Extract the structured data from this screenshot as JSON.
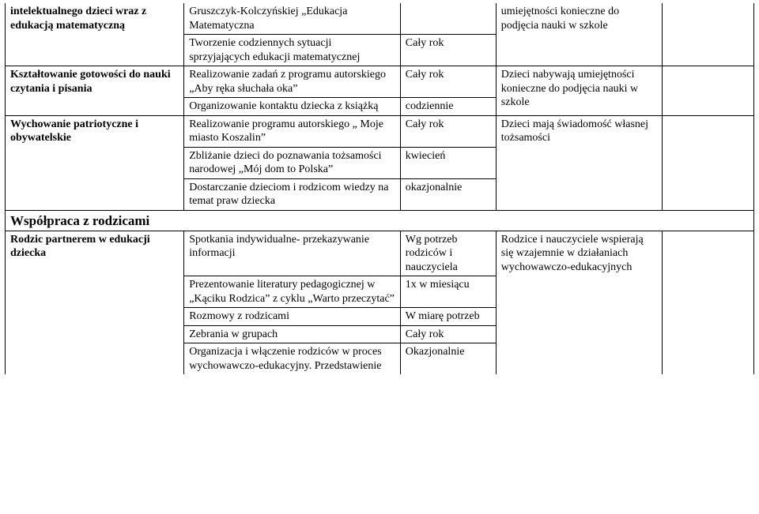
{
  "rows": {
    "r1": {
      "c1": "intelektualnego dzieci wraz z edukacją matematyczną",
      "c2a": "Gruszczyk-Kolczyńskiej „Edukacja Matematyczna",
      "c2b": "Tworzenie codziennych sytuacji sprzyjających edukacji matematycznej",
      "c3b": "Cały rok",
      "c4": "umiejętności konieczne do podjęcia nauki w szkole"
    },
    "r2": {
      "c1": "Kształtowanie gotowości do nauki czytania i pisania",
      "c2a": "Realizowanie zadań z programu autorskiego „Aby ręka słuchała oka”",
      "c3a": "Cały rok",
      "c2b": "Organizowanie kontaktu dziecka z książką",
      "c3b": "codziennie",
      "c4": "Dzieci nabywają umiejętności konieczne do podjęcia nauki w szkole"
    },
    "r3": {
      "c1": "Wychowanie patriotyczne i obywatelskie",
      "c2a": "Realizowanie programu autorskiego „ Moje miasto Koszalin”",
      "c3a": "Cały rok",
      "c2b": "Zbliżanie dzieci do poznawania tożsamości narodowej „Mój dom to Polska”",
      "c3b": "kwiecień",
      "c2c": "Dostarczanie dzieciom i rodzicom wiedzy na temat praw dziecka",
      "c3c": "okazjonalnie",
      "c4": "Dzieci mają świadomość własnej tożsamości"
    },
    "section": "Współpraca z rodzicami",
    "r4": {
      "c1": "Rodzic partnerem w edukacji dziecka",
      "c2a": "Spotkania indywidualne- przekazywanie informacji",
      "c3a": "Wg potrzeb rodziców i nauczyciela",
      "c2b": "Prezentowanie literatury pedagogicznej w „Kąciku Rodzica” z cyklu „Warto przeczytać”",
      "c3b": "1x w miesiącu",
      "c2c": "Rozmowy z rodzicami",
      "c3c": "W miarę potrzeb",
      "c2d": "Zebrania w grupach",
      "c3d": "Cały rok",
      "c2e": "Organizacja i włączenie rodziców w proces wychowawczo-edukacyjny. Przedstawienie",
      "c3e": "Okazjonalnie",
      "c4": "Rodzice i nauczyciele wspierają się wzajemnie w działaniach wychowawczo-edukacyjnych"
    }
  }
}
